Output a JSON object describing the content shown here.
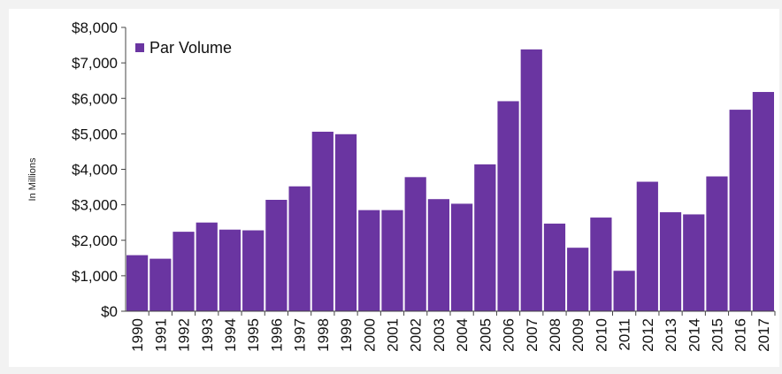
{
  "chart_data": {
    "type": "bar",
    "ylabel": "In Millions",
    "ylim": [
      0,
      8000
    ],
    "yticks": [
      0,
      1000,
      2000,
      3000,
      4000,
      5000,
      6000,
      7000,
      8000
    ],
    "ytick_labels": [
      "$0",
      "$1,000",
      "$2,000",
      "$3,000",
      "$4,000",
      "$5,000",
      "$6,000",
      "$7,000",
      "$8,000"
    ],
    "categories": [
      "1990",
      "1991",
      "1992",
      "1993",
      "1994",
      "1995",
      "1996",
      "1997",
      "1998",
      "1999",
      "2000",
      "2001",
      "2002",
      "2003",
      "2004",
      "2005",
      "2006",
      "2007",
      "2008",
      "2009",
      "2010",
      "2011",
      "2012",
      "2013",
      "2014",
      "2015",
      "2016",
      "2017"
    ],
    "series": [
      {
        "name": "Par Volume",
        "color": "#6a35a1",
        "values": [
          1580,
          1480,
          2240,
          2500,
          2300,
          2280,
          3140,
          3520,
          5060,
          4990,
          2850,
          2850,
          3780,
          3160,
          3030,
          4140,
          5920,
          7380,
          2470,
          1790,
          2640,
          1140,
          3650,
          2790,
          2730,
          3800,
          5680,
          6180
        ]
      }
    ],
    "legend_position": "top-left",
    "grid": false
  }
}
